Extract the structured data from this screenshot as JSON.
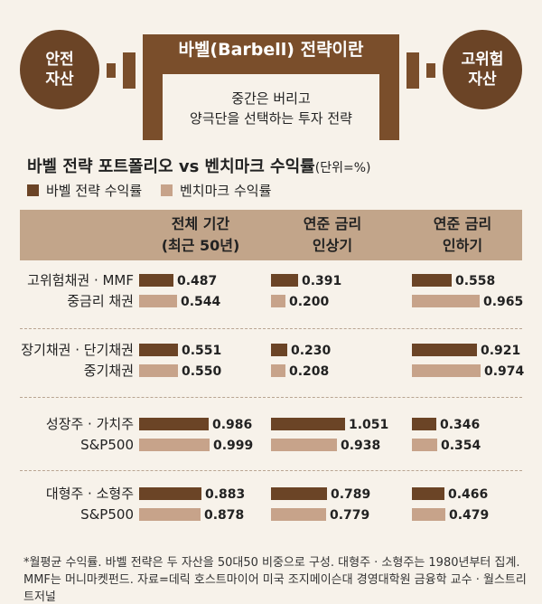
{
  "header": {
    "left_circle": [
      "안전",
      "자산"
    ],
    "right_circle": [
      "고위험",
      "자산"
    ],
    "title": "바벨(Barbell) 전략이란",
    "subtitle_line1": "중간은 버리고",
    "subtitle_line2": "양극단을 선택하는 투자 전략"
  },
  "colors": {
    "dark_brown": "#6b4426",
    "light_brown": "#c7a38a",
    "header_band": "#c2a58a"
  },
  "chart_data": {
    "type": "bar",
    "title": "바벨 전략 포트폴리오 vs 벤치마크 수익률",
    "unit": "(단위=%)",
    "legend": [
      "바벨 전략 수익률",
      "벤치마크 수익률"
    ],
    "columns": [
      {
        "line1": "전체 기간",
        "line2": "(최근 50년)"
      },
      {
        "line1": "연준 금리",
        "line2": "인상기"
      },
      {
        "line1": "연준 금리",
        "line2": "인하기"
      }
    ],
    "rows": [
      {
        "label1": "고위험채권 · MMF",
        "label2": "중금리 채권",
        "barbell": [
          "0.487",
          "0.391",
          "0.558"
        ],
        "benchmark": [
          "0.544",
          "0.200",
          "0.965"
        ]
      },
      {
        "label1": "장기채권 · 단기채권",
        "label2": "중기채권",
        "barbell": [
          "0.551",
          "0.230",
          "0.921"
        ],
        "benchmark": [
          "0.550",
          "0.208",
          "0.974"
        ]
      },
      {
        "label1": "성장주 · 가치주",
        "label2": "S&P500",
        "barbell": [
          "0.986",
          "1.051",
          "0.346"
        ],
        "benchmark": [
          "0.999",
          "0.938",
          "0.354"
        ]
      },
      {
        "label1": "대형주 · 소형주",
        "label2": "S&P500",
        "barbell": [
          "0.883",
          "0.789",
          "0.466"
        ],
        "benchmark": [
          "0.878",
          "0.779",
          "0.479"
        ]
      }
    ]
  },
  "footnote": {
    "line1": "*월평균 수익률. 바벨 전략은 두 자산을 50대50 비중으로 구성. 대형주 · 소형주는 1980년부터 집계.",
    "line2": "MMF는 머니마켓펀드. 자료=데릭 호스트마이어 미국 조지메이슨대 경영대학원 금융학 교수 · 월스트리트저널"
  }
}
